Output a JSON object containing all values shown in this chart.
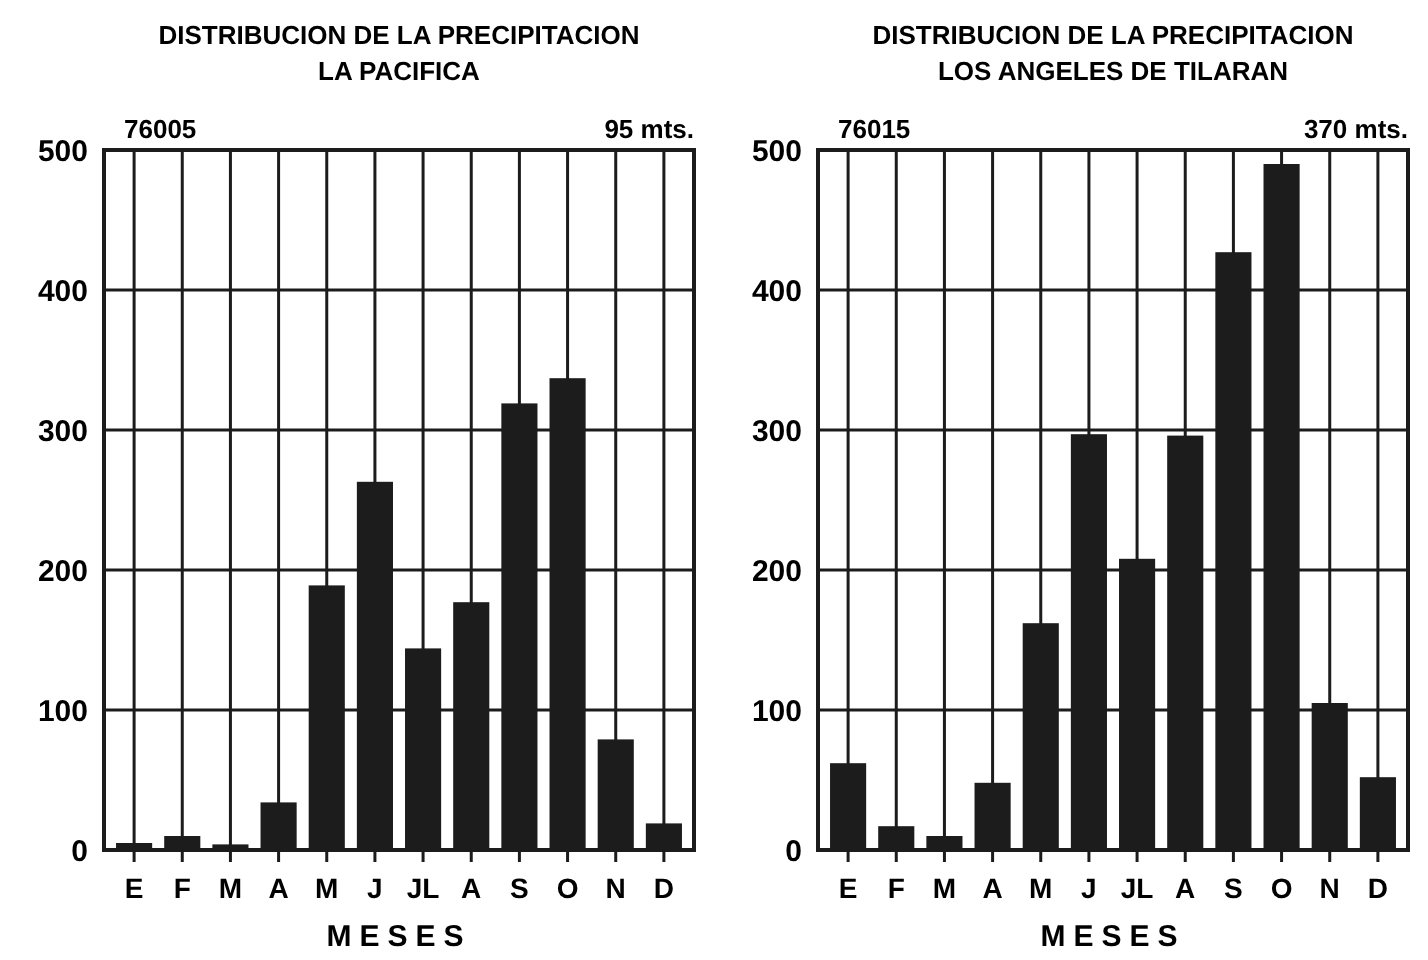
{
  "chart_data": [
    {
      "type": "bar",
      "title": "DISTRIBUCION DE LA PRECIPITACION",
      "subtitle": "LA PACIFICA",
      "xlabel": "MESES",
      "annotations": [
        "76005",
        "95 mts."
      ],
      "categories": [
        "E",
        "F",
        "M",
        "A",
        "M",
        "J",
        "JL",
        "A",
        "S",
        "O",
        "N",
        "D"
      ],
      "values": [
        5,
        10,
        4,
        34,
        189,
        263,
        144,
        177,
        319,
        337,
        79,
        19
      ],
      "color": "#1c1c1c",
      "ylim": [
        0,
        500
      ],
      "yticks": [
        0,
        100,
        200,
        300,
        400,
        500
      ],
      "grid": true
    },
    {
      "type": "bar",
      "title": "DISTRIBUCION DE LA PRECIPITACION",
      "subtitle": "LOS ANGELES DE TILARAN",
      "xlabel": "MESES",
      "annotations": [
        "76015",
        "370 mts."
      ],
      "categories": [
        "E",
        "F",
        "M",
        "A",
        "M",
        "J",
        "JL",
        "A",
        "S",
        "O",
        "N",
        "D"
      ],
      "values": [
        62,
        17,
        10,
        48,
        162,
        297,
        208,
        296,
        427,
        490,
        105,
        52
      ],
      "color": "#1c1c1c",
      "ylim": [
        0,
        500
      ],
      "yticks": [
        0,
        100,
        200,
        300,
        400,
        500
      ],
      "grid": true
    }
  ]
}
